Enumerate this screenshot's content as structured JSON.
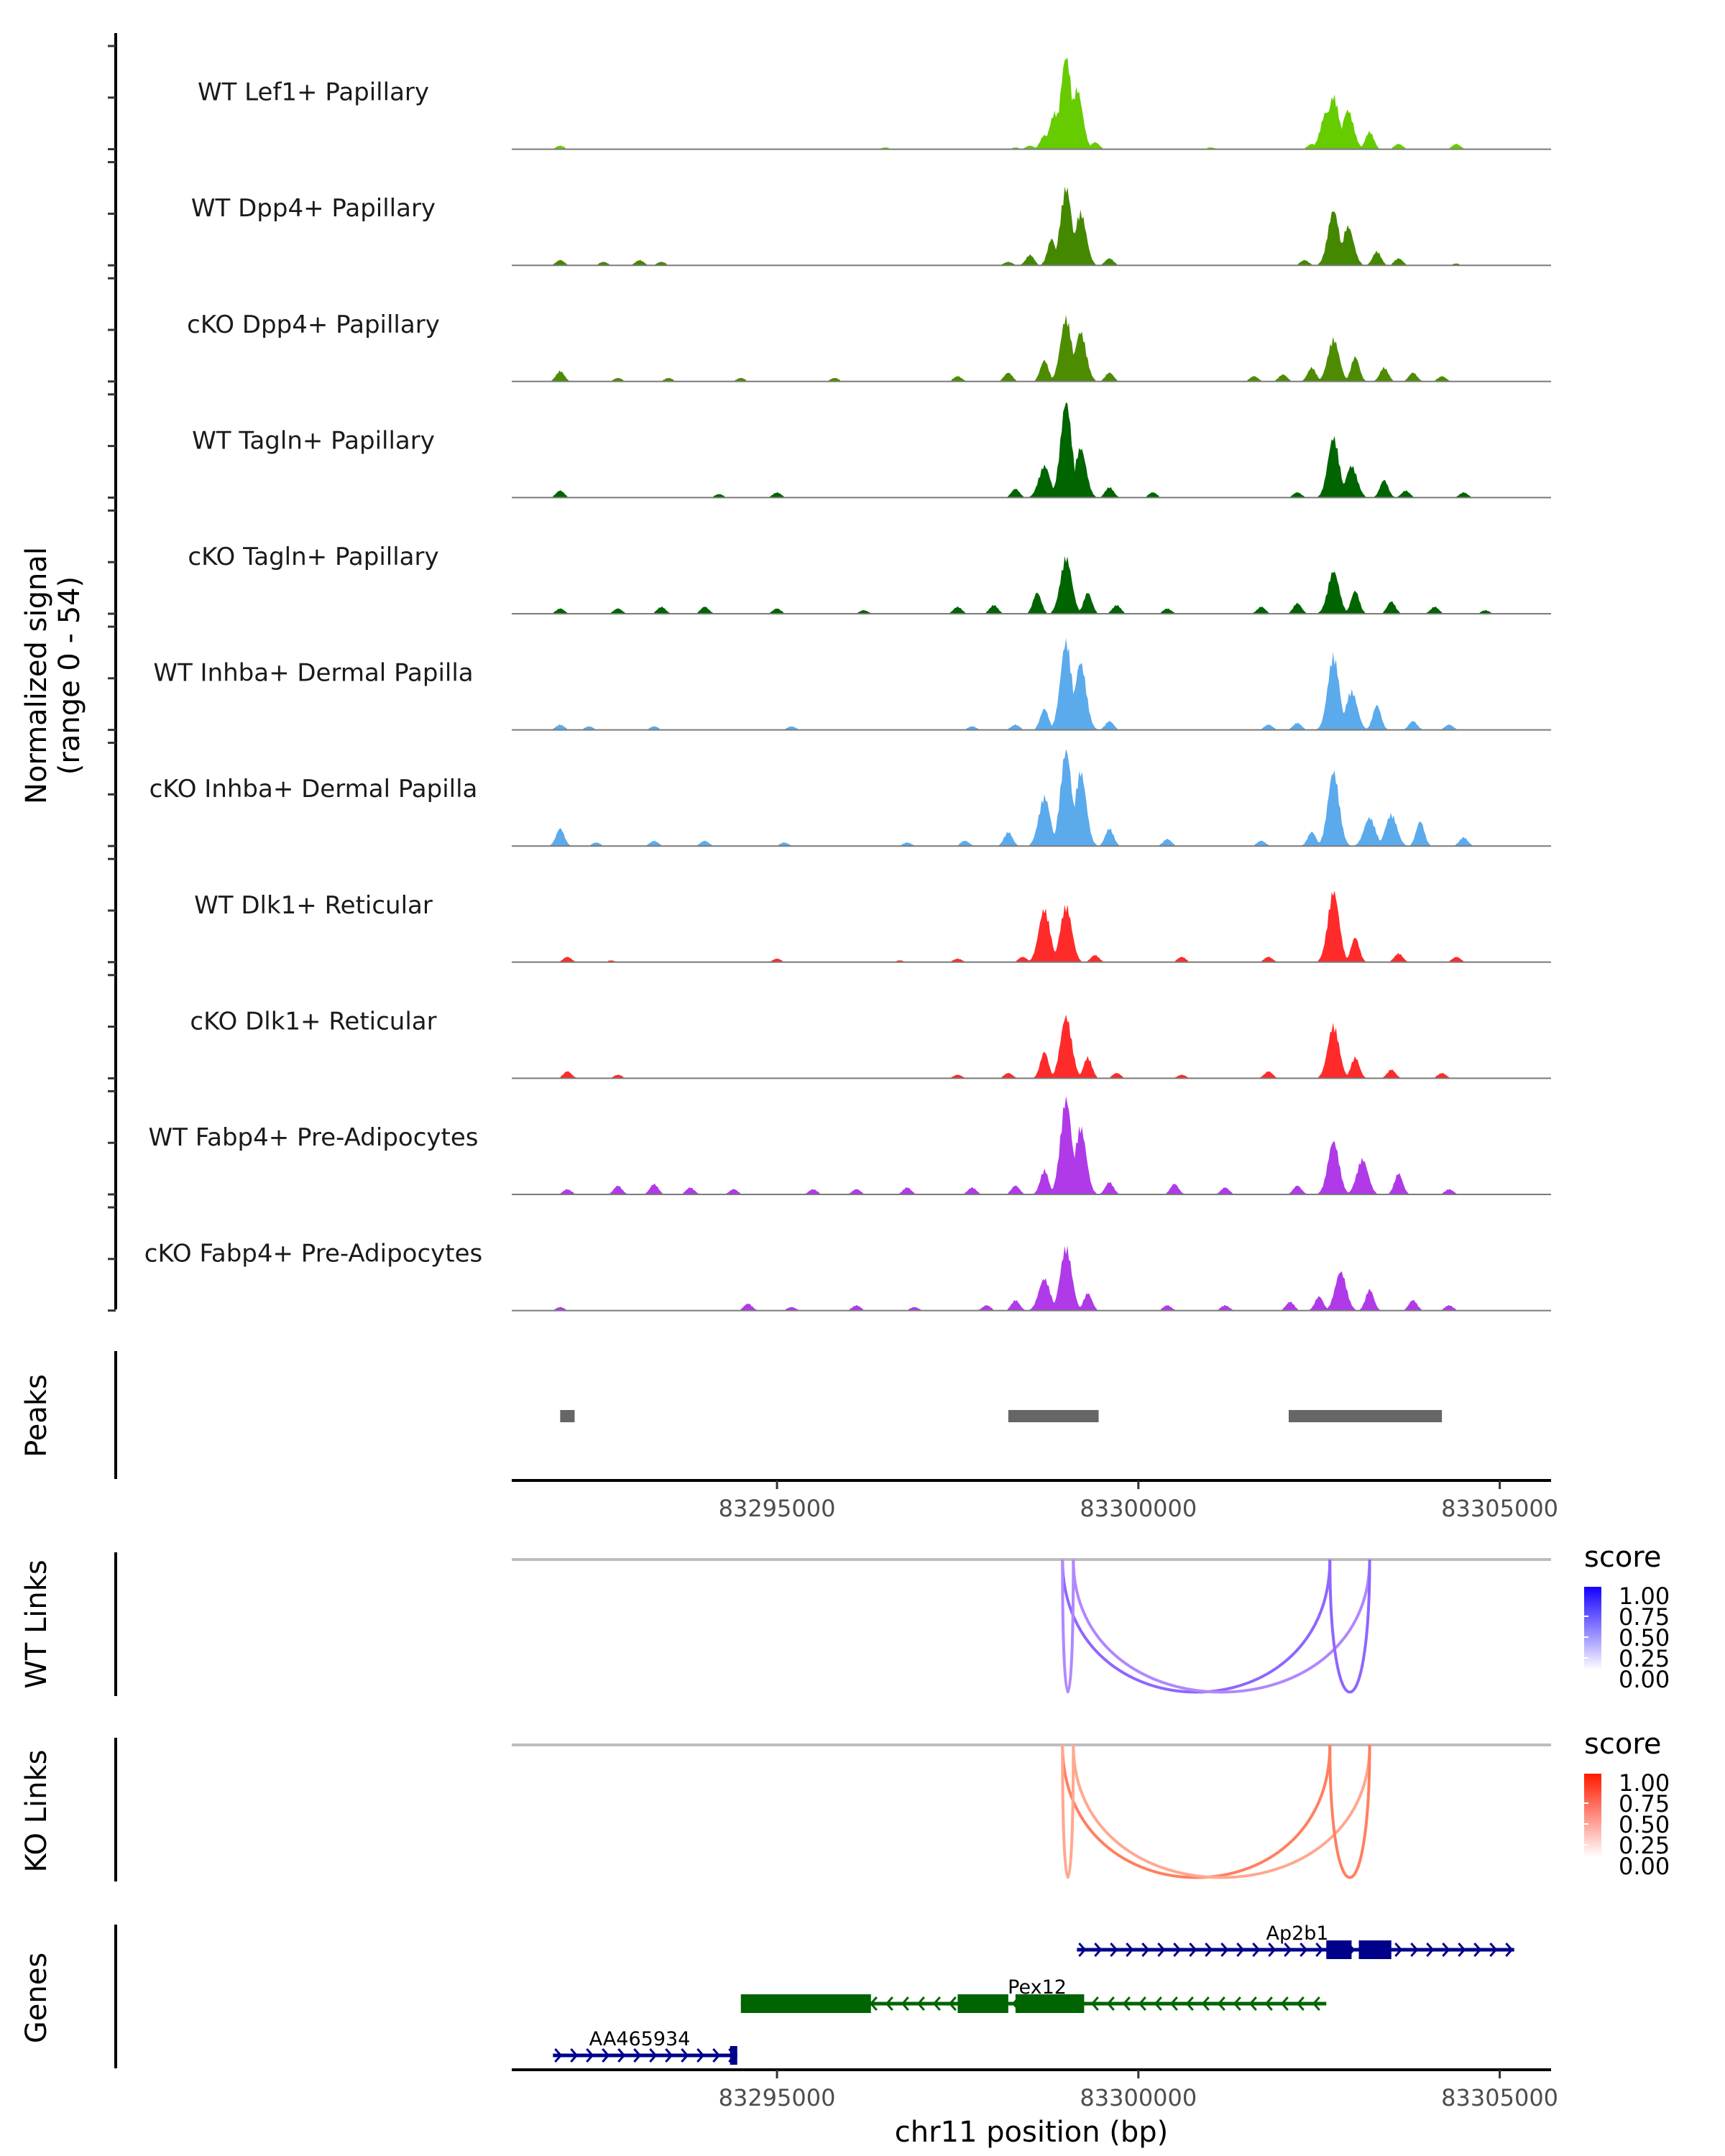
{
  "chart_data": {
    "type": "area",
    "title": "",
    "ylabel": "Normalized signal\n(range 0 - 54)",
    "ylabel_lines": [
      "Normalized signal",
      "(range 0 - 54)"
    ],
    "ylim": [
      0,
      54
    ],
    "xlabel": "chr11 position (bp)",
    "chromosome": "chr11",
    "xlim": [
      83291330,
      83305710
    ],
    "xticks": [
      83295000,
      83300000,
      83305000
    ],
    "xtick_labels": [
      "83295000",
      "83300000",
      "83305000"
    ],
    "tracks": [
      {
        "name": "WT Lef1+ Papillary",
        "color": "#66CC00",
        "peaks": [
          [
            83292000,
            2
          ],
          [
            83296500,
            1
          ],
          [
            83298300,
            1
          ],
          [
            83298500,
            2
          ],
          [
            83298700,
            8
          ],
          [
            83298850,
            21
          ],
          [
            83299000,
            52
          ],
          [
            83299150,
            34
          ],
          [
            83299400,
            4
          ],
          [
            83301000,
            1
          ],
          [
            83302400,
            3
          ],
          [
            83302600,
            21
          ],
          [
            83302700,
            30
          ],
          [
            83302900,
            22
          ],
          [
            83303200,
            10
          ],
          [
            83303600,
            3
          ],
          [
            83304400,
            3
          ]
        ]
      },
      {
        "name": "WT Dpp4+ Papillary",
        "color": "#448800",
        "peaks": [
          [
            83292000,
            3
          ],
          [
            83292600,
            2
          ],
          [
            83293100,
            3
          ],
          [
            83293400,
            2
          ],
          [
            83298200,
            2
          ],
          [
            83298500,
            6
          ],
          [
            83298800,
            15
          ],
          [
            83299000,
            44
          ],
          [
            83299200,
            30
          ],
          [
            83299600,
            4
          ],
          [
            83302300,
            3
          ],
          [
            83302700,
            31
          ],
          [
            83302900,
            22
          ],
          [
            83303300,
            8
          ],
          [
            83303600,
            4
          ],
          [
            83304400,
            1
          ]
        ]
      },
      {
        "name": "cKO Dpp4+ Papillary",
        "color": "#4D8C00",
        "peaks": [
          [
            83292000,
            6
          ],
          [
            83292800,
            2
          ],
          [
            83293500,
            2
          ],
          [
            83294500,
            2
          ],
          [
            83295800,
            2
          ],
          [
            83297500,
            3
          ],
          [
            83298200,
            5
          ],
          [
            83298700,
            12
          ],
          [
            83299000,
            36
          ],
          [
            83299200,
            28
          ],
          [
            83299600,
            5
          ],
          [
            83301600,
            3
          ],
          [
            83302000,
            4
          ],
          [
            83302400,
            8
          ],
          [
            83302700,
            24
          ],
          [
            83303000,
            14
          ],
          [
            83303400,
            8
          ],
          [
            83303800,
            5
          ],
          [
            83304200,
            3
          ]
        ]
      },
      {
        "name": "WT Tagln+ Papillary",
        "color": "#006400",
        "peaks": [
          [
            83292000,
            4
          ],
          [
            83294200,
            2
          ],
          [
            83295000,
            3
          ],
          [
            83298300,
            5
          ],
          [
            83298700,
            18
          ],
          [
            83299000,
            54
          ],
          [
            83299200,
            28
          ],
          [
            83299600,
            6
          ],
          [
            83300200,
            3
          ],
          [
            83302200,
            3
          ],
          [
            83302700,
            34
          ],
          [
            83302950,
            18
          ],
          [
            83303400,
            10
          ],
          [
            83303700,
            4
          ],
          [
            83304500,
            3
          ]
        ]
      },
      {
        "name": "cKO Tagln+ Papillary",
        "color": "#006400",
        "peaks": [
          [
            83292000,
            3
          ],
          [
            83292800,
            3
          ],
          [
            83293400,
            4
          ],
          [
            83294000,
            4
          ],
          [
            83295000,
            3
          ],
          [
            83296200,
            2
          ],
          [
            83297500,
            4
          ],
          [
            83298000,
            5
          ],
          [
            83298600,
            12
          ],
          [
            83299000,
            32
          ],
          [
            83299300,
            12
          ],
          [
            83299700,
            5
          ],
          [
            83300400,
            3
          ],
          [
            83301700,
            4
          ],
          [
            83302200,
            6
          ],
          [
            83302700,
            24
          ],
          [
            83303000,
            13
          ],
          [
            83303500,
            7
          ],
          [
            83304100,
            4
          ],
          [
            83304800,
            2
          ]
        ]
      },
      {
        "name": "WT Inhba+ Dermal Papilla",
        "color": "#5BAAEC",
        "peaks": [
          [
            83292000,
            3
          ],
          [
            83292400,
            2
          ],
          [
            83293300,
            2
          ],
          [
            83295200,
            2
          ],
          [
            83297700,
            2
          ],
          [
            83298300,
            3
          ],
          [
            83298700,
            12
          ],
          [
            83299000,
            50
          ],
          [
            83299200,
            38
          ],
          [
            83299600,
            5
          ],
          [
            83301800,
            3
          ],
          [
            83302200,
            4
          ],
          [
            83302700,
            42
          ],
          [
            83302950,
            22
          ],
          [
            83303300,
            14
          ],
          [
            83303800,
            5
          ],
          [
            83304300,
            3
          ]
        ]
      },
      {
        "name": "cKO Inhba+ Dermal Papilla",
        "color": "#5BAAEC",
        "peaks": [
          [
            83292000,
            10
          ],
          [
            83292500,
            2
          ],
          [
            83293300,
            3
          ],
          [
            83294000,
            3
          ],
          [
            83295100,
            2
          ],
          [
            83296800,
            2
          ],
          [
            83297600,
            3
          ],
          [
            83298200,
            8
          ],
          [
            83298700,
            28
          ],
          [
            83299000,
            54
          ],
          [
            83299200,
            42
          ],
          [
            83299600,
            10
          ],
          [
            83300400,
            4
          ],
          [
            83301700,
            3
          ],
          [
            83302400,
            8
          ],
          [
            83302700,
            42
          ],
          [
            83303200,
            16
          ],
          [
            83303500,
            18
          ],
          [
            83303900,
            14
          ],
          [
            83304500,
            5
          ]
        ]
      },
      {
        "name": "WT Dlk1+ Reticular",
        "color": "#FF2A2A",
        "peaks": [
          [
            83292100,
            3
          ],
          [
            83292700,
            1
          ],
          [
            83295000,
            2
          ],
          [
            83296700,
            1
          ],
          [
            83297500,
            2
          ],
          [
            83298400,
            3
          ],
          [
            83298700,
            30
          ],
          [
            83299000,
            32
          ],
          [
            83299400,
            4
          ],
          [
            83300600,
            3
          ],
          [
            83301800,
            3
          ],
          [
            83302700,
            40
          ],
          [
            83303000,
            14
          ],
          [
            83303600,
            5
          ],
          [
            83304400,
            3
          ]
        ]
      },
      {
        "name": "cKO Dlk1+ Reticular",
        "color": "#FF2A2A",
        "peaks": [
          [
            83292100,
            4
          ],
          [
            83292800,
            2
          ],
          [
            83297500,
            2
          ],
          [
            83298200,
            3
          ],
          [
            83298700,
            15
          ],
          [
            83299000,
            35
          ],
          [
            83299300,
            12
          ],
          [
            83299700,
            3
          ],
          [
            83300600,
            2
          ],
          [
            83301800,
            4
          ],
          [
            83302700,
            30
          ],
          [
            83303000,
            12
          ],
          [
            83303500,
            5
          ],
          [
            83304200,
            3
          ]
        ]
      },
      {
        "name": "WT Fabp4+ Pre-Adipocytes",
        "color": "#B03AE8",
        "peaks": [
          [
            83292100,
            3
          ],
          [
            83292800,
            5
          ],
          [
            83293300,
            6
          ],
          [
            83293800,
            4
          ],
          [
            83294400,
            3
          ],
          [
            83295500,
            3
          ],
          [
            83296100,
            3
          ],
          [
            83296800,
            4
          ],
          [
            83297700,
            4
          ],
          [
            83298300,
            5
          ],
          [
            83298700,
            14
          ],
          [
            83299000,
            54
          ],
          [
            83299200,
            38
          ],
          [
            83299600,
            7
          ],
          [
            83300500,
            6
          ],
          [
            83301200,
            4
          ],
          [
            83302200,
            5
          ],
          [
            83302700,
            30
          ],
          [
            83303100,
            20
          ],
          [
            83303600,
            12
          ],
          [
            83304300,
            3
          ]
        ]
      },
      {
        "name": "cKO Fabp4+ Pre-Adipocytes",
        "color": "#B03AE8",
        "peaks": [
          [
            83292000,
            2
          ],
          [
            83294600,
            4
          ],
          [
            83295200,
            2
          ],
          [
            83296100,
            3
          ],
          [
            83296900,
            2
          ],
          [
            83297900,
            3
          ],
          [
            83298300,
            6
          ],
          [
            83298700,
            18
          ],
          [
            83299000,
            36
          ],
          [
            83299300,
            10
          ],
          [
            83300400,
            3
          ],
          [
            83301200,
            3
          ],
          [
            83302100,
            5
          ],
          [
            83302500,
            8
          ],
          [
            83302800,
            22
          ],
          [
            83303200,
            12
          ],
          [
            83303800,
            6
          ],
          [
            83304300,
            3
          ]
        ]
      }
    ],
    "peaks_track": {
      "label": "Peaks",
      "color": "#666666",
      "regions": [
        [
          83292000,
          83292200
        ],
        [
          83298200,
          83299450
        ],
        [
          83302080,
          83304200
        ]
      ]
    },
    "links": [
      {
        "label": "WT Links",
        "legend_title": "score",
        "legend_ticks": [
          "1.00",
          "0.75",
          "0.50",
          "0.25",
          "0.00"
        ],
        "color_high": "#1400FF",
        "color_low": "#FFFFFF",
        "arcs": [
          {
            "start": 83298950,
            "end": 83302650,
            "score": 0.6
          },
          {
            "start": 83299100,
            "end": 83303200,
            "score": 0.45
          },
          {
            "start": 83298950,
            "end": 83299100,
            "score": 0.45
          },
          {
            "start": 83302650,
            "end": 83303200,
            "score": 0.6
          }
        ]
      },
      {
        "label": "KO Links",
        "legend_title": "score",
        "legend_ticks": [
          "1.00",
          "0.75",
          "0.50",
          "0.25",
          "0.00"
        ],
        "color_high": "#FF1A00",
        "color_low": "#FFFFFF",
        "arcs": [
          {
            "start": 83298950,
            "end": 83302650,
            "score": 0.55
          },
          {
            "start": 83299100,
            "end": 83303200,
            "score": 0.4
          },
          {
            "start": 83298950,
            "end": 83299100,
            "score": 0.4
          },
          {
            "start": 83302650,
            "end": 83303200,
            "score": 0.55
          }
        ]
      }
    ],
    "genes_track": {
      "label": "Genes",
      "genes": [
        {
          "name": "Ap2b1",
          "strand": "+",
          "color": "#00008B",
          "start": 83299150,
          "end": 83305200,
          "row": 0,
          "exons": [
            [
              83302600,
              83302950
            ],
            [
              83303050,
              83303500
            ]
          ]
        },
        {
          "name": "Pex12",
          "strand": "-",
          "color": "#006400",
          "start": 83294500,
          "end": 83302600,
          "row": 1,
          "exons": [
            [
              83294500,
              83296300
            ],
            [
              83297500,
              83298200
            ],
            [
              83298300,
              83299250
            ]
          ]
        },
        {
          "name": "AA465934",
          "strand": "+",
          "color": "#00008B",
          "start": 83291900,
          "end": 83294450,
          "row": 2,
          "exons": [
            [
              83294350,
              83294450
            ]
          ]
        }
      ]
    }
  }
}
